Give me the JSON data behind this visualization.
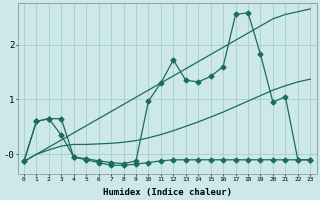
{
  "xlabel": "Humidex (Indice chaleur)",
  "bg_color": "#cce8e8",
  "line_color": "#1a6b60",
  "grid_color": "#aacccc",
  "xlim": [
    -0.5,
    23.5
  ],
  "ylim": [
    -0.35,
    2.75
  ],
  "yticks": [
    0.0,
    1.0,
    2.0
  ],
  "ytick_labels": [
    "-0",
    "1",
    "2"
  ],
  "line1_x": [
    0,
    1,
    2,
    3,
    4,
    5,
    6,
    7,
    8,
    9,
    10,
    11,
    12,
    13,
    14,
    15,
    16,
    17,
    18,
    19,
    20,
    21,
    22,
    23
  ],
  "line1_y": [
    -0.13,
    0.0,
    0.13,
    0.26,
    0.39,
    0.52,
    0.65,
    0.78,
    0.91,
    1.04,
    1.17,
    1.3,
    1.43,
    1.56,
    1.69,
    1.82,
    1.95,
    2.08,
    2.21,
    2.34,
    2.47,
    2.55,
    2.6,
    2.65
  ],
  "line2_x": [
    0,
    1,
    2,
    3,
    4,
    5,
    6,
    7,
    8,
    9,
    10,
    11,
    12,
    13,
    14,
    15,
    16,
    17,
    18,
    19,
    20,
    21,
    22,
    23
  ],
  "line2_y": [
    -0.13,
    0.0,
    0.08,
    0.15,
    0.18,
    0.18,
    0.19,
    0.2,
    0.22,
    0.25,
    0.3,
    0.36,
    0.43,
    0.51,
    0.59,
    0.68,
    0.77,
    0.87,
    0.97,
    1.07,
    1.17,
    1.25,
    1.32,
    1.37
  ],
  "line3_x": [
    0,
    1,
    2,
    3,
    4,
    5,
    6,
    7,
    8,
    9,
    10,
    11,
    12,
    13,
    14,
    15,
    16,
    17,
    18,
    19,
    20,
    21,
    22,
    23
  ],
  "line3_y": [
    -0.13,
    0.6,
    0.65,
    0.65,
    -0.05,
    -0.08,
    -0.12,
    -0.15,
    -0.17,
    -0.12,
    0.97,
    1.3,
    1.72,
    1.35,
    1.32,
    1.42,
    1.6,
    2.55,
    2.58,
    1.82,
    0.95,
    1.05,
    -0.1,
    -0.1
  ],
  "line4_x": [
    0,
    1,
    2,
    3,
    4,
    5,
    6,
    7,
    8,
    9,
    10,
    11,
    12,
    13,
    14,
    15,
    16,
    17,
    18,
    19,
    20,
    21,
    22,
    23
  ],
  "line4_y": [
    -0.13,
    0.6,
    0.65,
    0.35,
    -0.05,
    -0.1,
    -0.15,
    -0.2,
    -0.2,
    -0.18,
    -0.15,
    -0.12,
    -0.1,
    -0.1,
    -0.1,
    -0.1,
    -0.1,
    -0.1,
    -0.1,
    -0.1,
    -0.1,
    -0.1,
    -0.1,
    -0.1
  ]
}
